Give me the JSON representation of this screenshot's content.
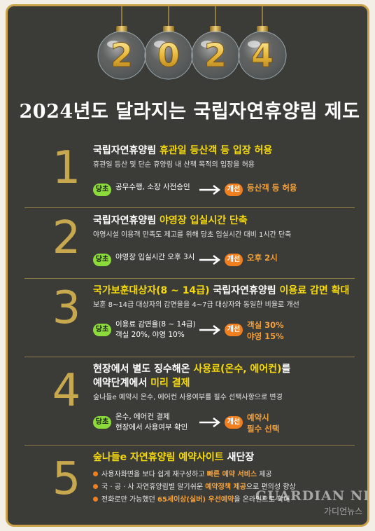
{
  "banner": {
    "digits": [
      "2",
      "0",
      "2",
      "4"
    ]
  },
  "title": "2024년도 달라지는 국립자연휴양림 제도",
  "labels": {
    "current": "당초",
    "improved": "개선"
  },
  "sections": [
    {
      "number": "1",
      "head_a": "국립자연휴양림 ",
      "head_b": "휴관일 등산객 등 입장 허용",
      "head_c": "",
      "sub": "휴관일 등산 및 단순 휴양림 내 산책 목적의 입장을 허용",
      "current_text": "공무수행, 소장 사전승인",
      "improved_text": "등산객 등 허용"
    },
    {
      "number": "2",
      "head_a": "국립자연휴양림 ",
      "head_b": "야영장 입실시간 단축",
      "head_c": "",
      "sub": "야영시설 이용객 만족도 제고를 위해 당초 입실시간 대비 1시간 단축",
      "current_text": "야영장 입실시간 오후 3시",
      "improved_text": "오후 2시"
    },
    {
      "number": "3",
      "head_a": "국가보훈대상자(8 ~ 14급)",
      "head_b": " 국립자연휴양림 ",
      "head_c": "이용료 감면 확대",
      "sub": "보훈 8~14급 대상자의 감면율을 4~7급 대상자와 동일한 비율로 개선",
      "current_text_1": "이용료 감면율(8 ~ 14급)",
      "current_text_2": "객실 20%, 야영 10%",
      "improved_text_1": "객실 30%",
      "improved_text_2": "야영 15%"
    },
    {
      "number": "4",
      "head_line1_a": "현장에서 별도 징수해온 ",
      "head_line1_b": "사용료(온수, 에어컨)",
      "head_line1_c": "를",
      "head_line2_a": "예약단계에서 ",
      "head_line2_b": "미리 결제",
      "sub": "숲나들e 예약시 온수, 에어컨 사용여부를 필수 선택사항으로 변경",
      "current_text_1": "온수, 에어컨 결제",
      "current_text_2": "현장에서 사용여부 확인",
      "improved_text_1": "예약시",
      "improved_text_2": "필수 선택"
    },
    {
      "number": "5",
      "head_a": "숲나들e 자연휴양림 예약사이트 ",
      "head_b": "새단장",
      "bullets": [
        {
          "a": "사용자화면을 보다 쉽게 재구성하고 ",
          "b": "빠른 예약 서비스",
          "c": " 제공"
        },
        {
          "a": "국 · 공 · 사 자연휴양림별 알기쉬운 ",
          "b": "예약정책 제공",
          "c": "으로 편의성 향상"
        },
        {
          "a": "전화로만 가능했던 ",
          "b": "65세이상(실버) 우선예약",
          "c": "을 온라인으로 확대"
        }
      ]
    }
  ],
  "watermark": {
    "brand": "GUARDIAN NEWS",
    "korean": "가디언뉴스"
  },
  "colors": {
    "background": "#3b3b38",
    "frame": "#c9a24a",
    "highlight": "#f5d90a",
    "current_badge": "#8bdb3a",
    "improved_badge": "#f07f1f",
    "number": "#c8a84e"
  }
}
